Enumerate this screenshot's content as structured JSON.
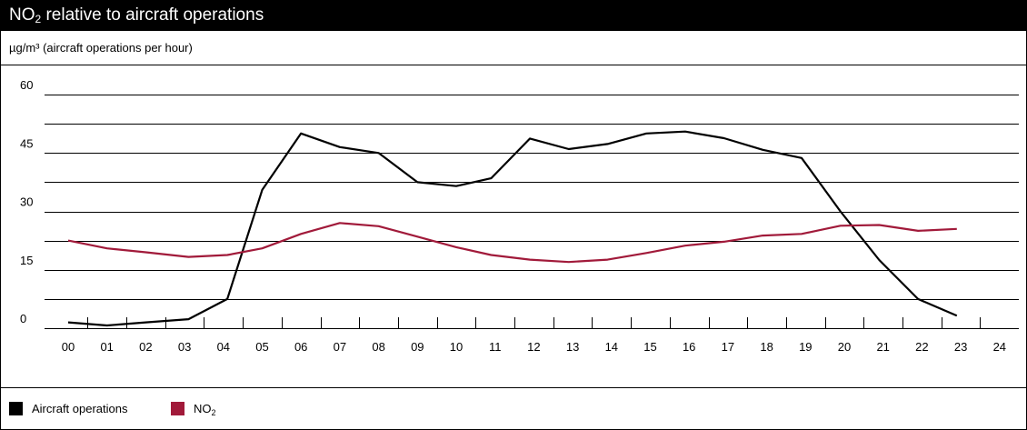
{
  "title": {
    "main": "NO",
    "sub": "2",
    "rest": " relative to aircraft operations"
  },
  "unit_label": "µg/m³ (aircraft operations per hour)",
  "colors": {
    "aircraft": "#000000",
    "no2": "#a11a3a",
    "grid": "#000000"
  },
  "legend": [
    {
      "label": "Aircraft operations",
      "sub": "",
      "color": "#000000"
    },
    {
      "label": "NO",
      "sub": "2",
      "color": "#a11a3a"
    }
  ],
  "chart_data": {
    "type": "line",
    "title": "NO2 relative to aircraft operations",
    "ylabel": "µg/m³ (aircraft operations per hour)",
    "xlabel": "",
    "ylim": [
      0,
      60
    ],
    "ytick_labels": [
      "0",
      "15",
      "30",
      "45",
      "60"
    ],
    "ytick_values": [
      0,
      15,
      30,
      45,
      60
    ],
    "x": [
      "00",
      "01",
      "02",
      "03",
      "04",
      "05",
      "06",
      "07",
      "08",
      "09",
      "10",
      "11",
      "12",
      "13",
      "14",
      "15",
      "16",
      "17",
      "18",
      "19",
      "20",
      "21",
      "22",
      "23",
      "24"
    ],
    "grid": true,
    "legend_position": "bottom-left",
    "series": [
      {
        "name": "Aircraft operations",
        "color": "#000000",
        "points": [
          [
            0.0,
            1.5
          ],
          [
            1.0,
            0.7
          ],
          [
            2.0,
            1.5
          ],
          [
            3.1,
            2.3
          ],
          [
            4.1,
            7.5
          ],
          [
            5.0,
            35.5
          ],
          [
            6.0,
            50.0
          ],
          [
            7.0,
            46.5
          ],
          [
            8.0,
            45.0
          ],
          [
            9.0,
            37.5
          ],
          [
            10.0,
            36.5
          ],
          [
            10.9,
            38.5
          ],
          [
            11.9,
            48.7
          ],
          [
            12.9,
            46.0
          ],
          [
            13.9,
            47.3
          ],
          [
            14.9,
            50.0
          ],
          [
            15.9,
            50.5
          ],
          [
            16.9,
            48.8
          ],
          [
            17.9,
            45.8
          ],
          [
            18.9,
            43.7
          ],
          [
            19.9,
            30.0
          ],
          [
            20.9,
            17.5
          ],
          [
            21.9,
            7.5
          ],
          [
            22.9,
            3.2
          ]
        ]
      },
      {
        "name": "NO2",
        "color": "#a11a3a",
        "points": [
          [
            0.0,
            22.5
          ],
          [
            1.0,
            20.5
          ],
          [
            2.0,
            19.5
          ],
          [
            3.1,
            18.3
          ],
          [
            4.1,
            18.8
          ],
          [
            5.0,
            20.5
          ],
          [
            6.0,
            24.2
          ],
          [
            7.0,
            27.0
          ],
          [
            8.0,
            26.2
          ],
          [
            9.0,
            23.5
          ],
          [
            10.0,
            20.8
          ],
          [
            10.9,
            18.8
          ],
          [
            11.9,
            17.6
          ],
          [
            12.9,
            17.0
          ],
          [
            13.9,
            17.6
          ],
          [
            14.9,
            19.3
          ],
          [
            15.9,
            21.2
          ],
          [
            16.9,
            22.2
          ],
          [
            17.9,
            23.8
          ],
          [
            18.9,
            24.2
          ],
          [
            19.9,
            26.3
          ],
          [
            20.9,
            26.5
          ],
          [
            21.9,
            25.0
          ],
          [
            22.9,
            25.5
          ]
        ]
      }
    ]
  }
}
